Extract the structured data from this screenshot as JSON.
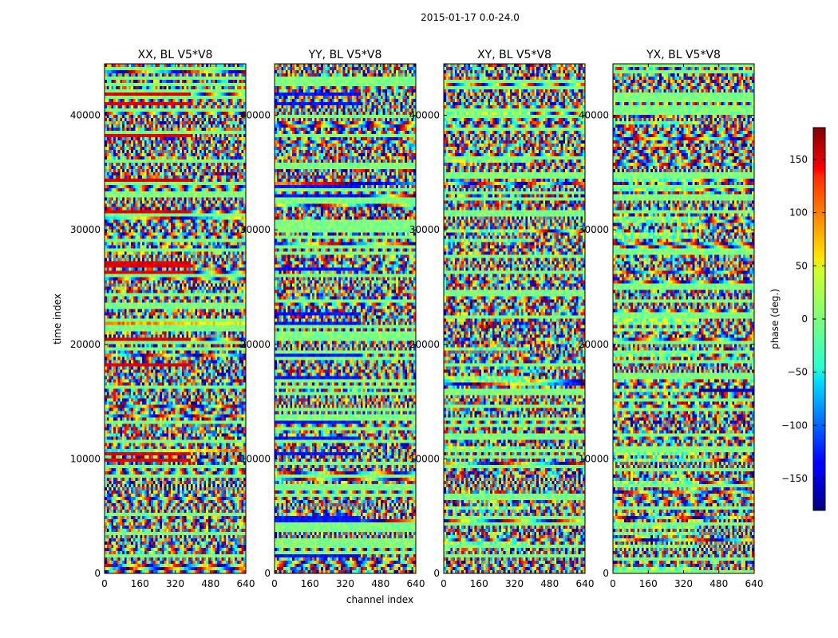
{
  "figure": {
    "suptitle": "2015-01-17 0.0-24.0",
    "xlabel": "channel index",
    "ylabel": "time index"
  },
  "chart_data": {
    "type": "heatmap",
    "colormap": "jet",
    "x_range": [
      0,
      640
    ],
    "y_range": [
      0,
      44500
    ],
    "x_ticks": [
      0,
      160,
      320,
      480,
      640
    ],
    "y_ticks": [
      0,
      10000,
      20000,
      30000,
      40000
    ],
    "panels": [
      {
        "title": "XX, BL V5*V8"
      },
      {
        "title": "YY, BL V5*V8"
      },
      {
        "title": "XY, BL V5*V8"
      },
      {
        "title": "YX, BL V5*V8"
      }
    ],
    "colorbar": {
      "label": "phase (deg.)",
      "range": [
        -180,
        180
      ],
      "ticks": [
        -150,
        -100,
        -50,
        0,
        50,
        100,
        150
      ],
      "tick_labels": [
        "−150",
        "−100",
        "−50",
        "0",
        "50",
        "100",
        "150"
      ]
    }
  }
}
